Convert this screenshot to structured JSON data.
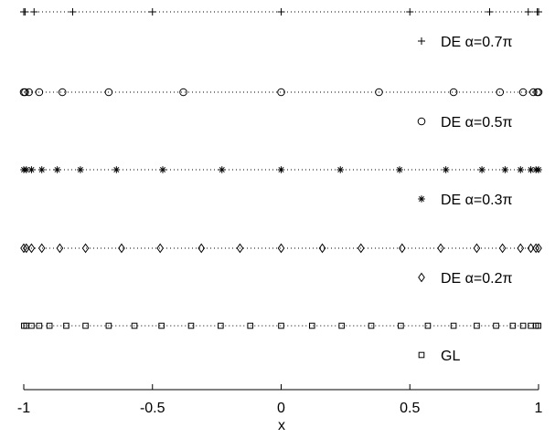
{
  "chart_data": {
    "type": "scatter",
    "title": "",
    "xlabel": "x",
    "ylabel": "",
    "xlim": [
      -1,
      1
    ],
    "xticks": [
      -1,
      -0.5,
      0,
      0.5,
      1
    ],
    "xtick_labels": [
      "-1",
      "-0.5",
      "0",
      "0.5",
      "1"
    ],
    "grid": false,
    "legend": "each series labelled beneath its row, right side",
    "series": [
      {
        "name": "DE α=0.7π",
        "marker": "plus",
        "x": [
          -1.0,
          -0.995,
          -0.96,
          -0.81,
          -0.5,
          0.0,
          0.5,
          0.81,
          0.96,
          0.995,
          1.0
        ]
      },
      {
        "name": "DE α=0.5π",
        "marker": "circle",
        "x": [
          -1.0,
          -0.995,
          -0.98,
          -0.94,
          -0.85,
          -0.67,
          -0.38,
          0.0,
          0.38,
          0.67,
          0.85,
          0.94,
          0.98,
          0.995,
          1.0
        ]
      },
      {
        "name": "DE α=0.3π",
        "marker": "asterisk",
        "x": [
          -1.0,
          -0.99,
          -0.97,
          -0.93,
          -0.87,
          -0.78,
          -0.64,
          -0.46,
          -0.23,
          0.0,
          0.23,
          0.46,
          0.64,
          0.78,
          0.87,
          0.93,
          0.97,
          0.99,
          1.0
        ]
      },
      {
        "name": "DE α=0.2π",
        "marker": "diamond",
        "x": [
          -1.0,
          -0.99,
          -0.97,
          -0.93,
          -0.86,
          -0.76,
          -0.62,
          -0.47,
          -0.31,
          -0.16,
          0.0,
          0.16,
          0.31,
          0.47,
          0.62,
          0.76,
          0.86,
          0.93,
          0.97,
          0.99,
          1.0
        ]
      },
      {
        "name": "GL",
        "marker": "square",
        "x": [
          -0.999,
          -0.99,
          -0.97,
          -0.94,
          -0.9,
          -0.835,
          -0.76,
          -0.67,
          -0.57,
          -0.465,
          -0.35,
          -0.235,
          -0.12,
          0.0,
          0.12,
          0.235,
          0.35,
          0.465,
          0.57,
          0.67,
          0.76,
          0.835,
          0.9,
          0.94,
          0.97,
          0.99,
          0.999
        ]
      }
    ]
  }
}
